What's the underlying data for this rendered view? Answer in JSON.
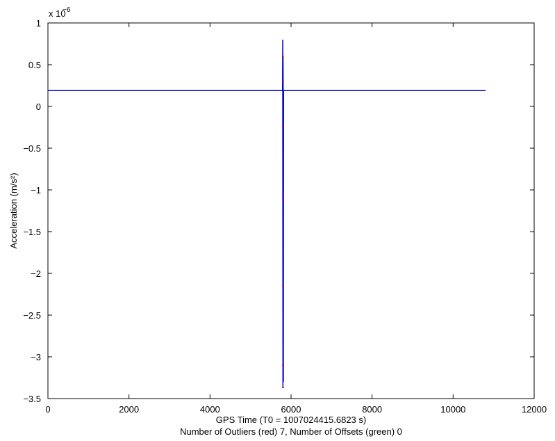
{
  "chart_data": {
    "type": "line",
    "xlabel": "GPS Time (T0 = 1007024415.6823 s)",
    "subtitle": "Number of Outliers (red) 7, Number of Offsets (green) 0",
    "ylabel": "Acceleration (m/s²)",
    "y_scale_factor": "x 10",
    "y_scale_exponent": "−6",
    "xlim": [
      0,
      12000
    ],
    "ylim": [
      -3.5,
      1
    ],
    "x_ticks": [
      0,
      2000,
      4000,
      6000,
      8000,
      10000,
      12000
    ],
    "x_tick_labels": [
      "0",
      "2000",
      "4000",
      "6000",
      "8000",
      "10000",
      "12000"
    ],
    "y_ticks": [
      1,
      0.5,
      0,
      -0.5,
      -1,
      -1.5,
      -2,
      -2.5,
      -3,
      -3.5
    ],
    "y_tick_labels": [
      "1",
      "0.5",
      "0",
      "−0.5",
      "−1",
      "−1.5",
      "−2",
      "−2.5",
      "−3",
      "−3.5"
    ],
    "grid": false,
    "series": [
      {
        "color": "#0000cc",
        "x": [
          0,
          1000,
          2000,
          3000,
          4000,
          5000,
          5790,
          5795,
          5800,
          5802,
          5805,
          5810,
          5815,
          6000,
          7000,
          8000,
          9000,
          10000,
          10800
        ],
        "y": [
          0.19,
          0.19,
          0.19,
          0.19,
          0.19,
          0.19,
          0.19,
          0.8,
          -3.37,
          0.6,
          0.25,
          -3.3,
          0.19,
          0.19,
          0.19,
          0.19,
          0.19,
          0.19,
          0.19
        ]
      }
    ],
    "outliers": {
      "color": "#ff0000",
      "x": [
        5800,
        5800,
        5800,
        5800,
        5800,
        5800,
        5800
      ],
      "y": [
        0.6,
        0.3,
        -0.25,
        -1.1,
        -2.15,
        -3.1,
        -3.37
      ]
    }
  }
}
